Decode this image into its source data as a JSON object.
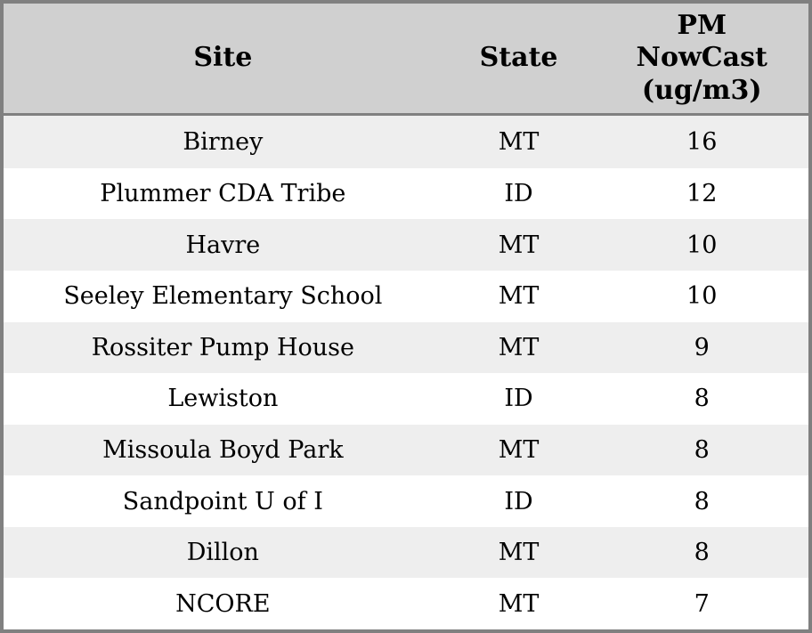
{
  "colors": {
    "outer_border": "#808080",
    "header_background": "#d0d0d0",
    "header_separator": "#808080",
    "row_stripe": "#eeeeee",
    "row_plain": "#ffffff",
    "text": "#000000"
  },
  "table": {
    "headers": [
      {
        "label": "Site",
        "lines": [
          "Site"
        ]
      },
      {
        "label": "State",
        "lines": [
          "State"
        ]
      },
      {
        "label": "PM NowCast (ug/m3)",
        "lines": [
          "PM",
          "NowCast",
          "(ug/m3)"
        ]
      }
    ],
    "rows": [
      {
        "site": "Birney",
        "state": "MT",
        "pm": "16"
      },
      {
        "site": "Plummer CDA Tribe",
        "state": "ID",
        "pm": "12"
      },
      {
        "site": "Havre",
        "state": "MT",
        "pm": "10"
      },
      {
        "site": "Seeley Elementary School",
        "state": "MT",
        "pm": "10"
      },
      {
        "site": "Rossiter Pump House",
        "state": "MT",
        "pm": "9"
      },
      {
        "site": "Lewiston",
        "state": "ID",
        "pm": "8"
      },
      {
        "site": "Missoula Boyd Park",
        "state": "MT",
        "pm": "8"
      },
      {
        "site": "Sandpoint U of I",
        "state": "ID",
        "pm": "8"
      },
      {
        "site": "Dillon",
        "state": "MT",
        "pm": "8"
      },
      {
        "site": "NCORE",
        "state": "MT",
        "pm": "7"
      }
    ]
  },
  "chart_data": {
    "type": "table",
    "title": "",
    "columns": [
      "Site",
      "State",
      "PM NowCast (ug/m3)"
    ],
    "rows": [
      [
        "Birney",
        "MT",
        16
      ],
      [
        "Plummer CDA Tribe",
        "ID",
        12
      ],
      [
        "Havre",
        "MT",
        10
      ],
      [
        "Seeley Elementary School",
        "MT",
        10
      ],
      [
        "Rossiter Pump House",
        "MT",
        9
      ],
      [
        "Lewiston",
        "ID",
        8
      ],
      [
        "Missoula Boyd Park",
        "MT",
        8
      ],
      [
        "Sandpoint U of I",
        "ID",
        8
      ],
      [
        "Dillon",
        "MT",
        8
      ],
      [
        "NCORE",
        "MT",
        7
      ]
    ],
    "layout": {
      "header_background": "#d0d0d0",
      "zebra_striping": true,
      "stripe_color": "#eeeeee",
      "grid": "outer-border-and-header-rule-only",
      "value_units": "ug/m3"
    }
  }
}
